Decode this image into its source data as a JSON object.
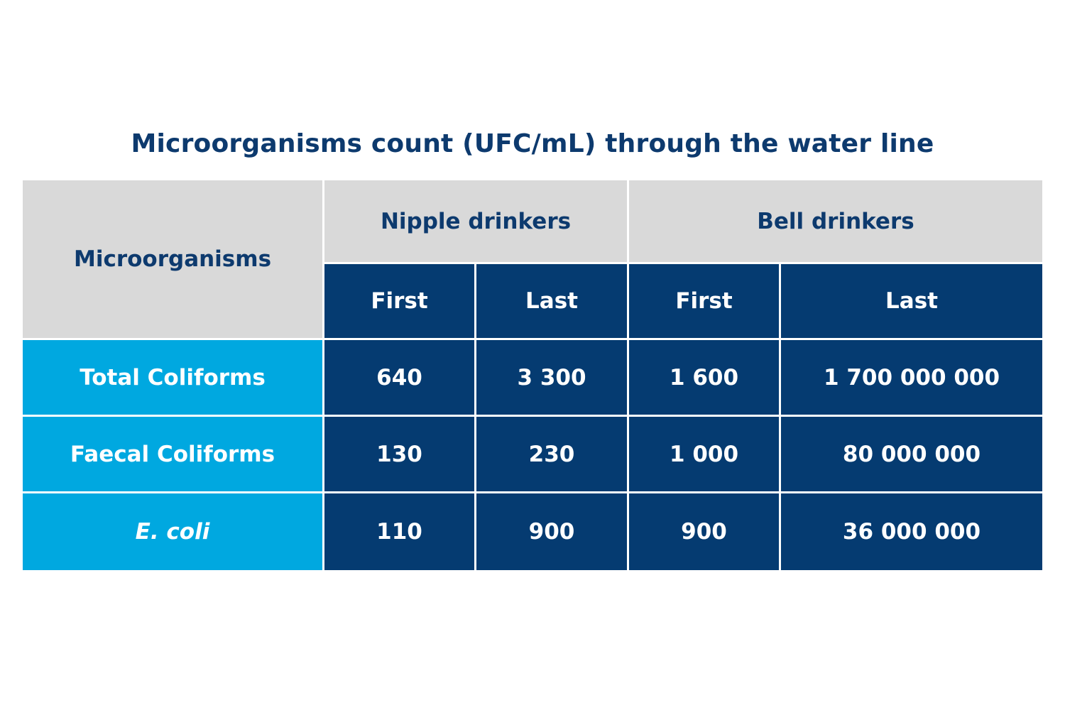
{
  "title": "Microorganisms count (UFC/mL) through the water line",
  "colors": {
    "header_grey": "#d9d9d9",
    "navy": "#053b71",
    "cyan": "#00a8e0",
    "title": "#0d3a6e"
  },
  "chart_data": {
    "type": "table",
    "title": "Microorganisms count (UFC/mL) through the water line",
    "row_header_label": "Microorganisms",
    "column_groups": [
      {
        "name": "Nipple drinkers",
        "columns": [
          "First",
          "Last"
        ]
      },
      {
        "name": "Bell drinkers",
        "columns": [
          "First",
          "Last"
        ]
      }
    ],
    "rows": [
      {
        "label": "Total Coliforms",
        "italic": false,
        "values": [
          "640",
          "3 300",
          "1 600",
          "1 700 000 000"
        ]
      },
      {
        "label": "Faecal Coliforms",
        "italic": false,
        "values": [
          "130",
          "230",
          "1 000",
          "80 000 000"
        ]
      },
      {
        "label": "E. coli",
        "italic": true,
        "values": [
          "110",
          "900",
          "900",
          "36 000 000"
        ]
      }
    ]
  }
}
